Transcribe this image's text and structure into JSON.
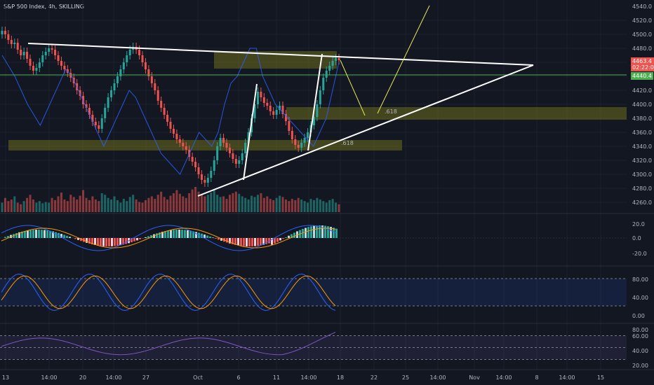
{
  "symbol": {
    "title": "S&P 500 Index, 4h, SKILLING",
    "current_price": "4463.4",
    "countdown": "02:22:01",
    "level_price": "4440.4",
    "top_label": "4540.0"
  },
  "colors": {
    "bg": "#131722",
    "bull": "#26a69a",
    "bear": "#ef5350",
    "white": "#ffffff",
    "zone": "#6b6b1e",
    "green_line": "#4caf50",
    "rsi_band": "#7e57c2",
    "stoch_band": "#2962ff"
  },
  "labels": {
    "fib1": ".618",
    "fib2": ".618"
  },
  "chart_data": [
    {
      "type": "candlestick",
      "y_ticks": [
        "4520.0",
        "4500.0",
        "4480.0",
        "4460.0",
        "4440.0",
        "4420.0",
        "4400.0",
        "4380.0",
        "4360.0",
        "4340.0",
        "4320.0",
        "4300.0",
        "4280.0",
        "4260.0"
      ],
      "x_ticks": [
        "13",
        "14:00",
        "20",
        "14:00",
        "27",
        "Oct",
        "6",
        "11",
        "14:00",
        "18",
        "22",
        "25",
        "14:00",
        "Nov",
        "14:00",
        "8",
        "14:00",
        "15"
      ],
      "ylim": [
        4250,
        4545
      ],
      "close": [
        4505,
        4500,
        4492,
        4486,
        4488,
        4478,
        4470,
        4475,
        4465,
        4455,
        4448,
        4452,
        4460,
        4470,
        4475,
        4480,
        4478,
        4470,
        4462,
        4455,
        4450,
        4445,
        4438,
        4430,
        4420,
        4412,
        4400,
        4395,
        4385,
        4375,
        4370,
        4365,
        4380,
        4395,
        4410,
        4420,
        4430,
        4440,
        4450,
        4460,
        4470,
        4478,
        4482,
        4478,
        4470,
        4460,
        4450,
        4440,
        4430,
        4420,
        4405,
        4395,
        4385,
        4375,
        4365,
        4358,
        4350,
        4345,
        4340,
        4335,
        4325,
        4318,
        4310,
        4300,
        4292,
        4288,
        4295,
        4305,
        4320,
        4340,
        4352,
        4345,
        4338,
        4330,
        4322,
        4315,
        4320,
        4330,
        4345,
        4360,
        4380,
        4400,
        4418,
        4410,
        4402,
        4398,
        4390,
        4385,
        4392,
        4398,
        4386,
        4376,
        4362,
        4350,
        4342,
        4338,
        4345,
        4352,
        4360,
        4370,
        4382,
        4400,
        4420,
        4438,
        4448,
        4455,
        4462,
        4466,
        4463
      ],
      "volumes": [
        0.3,
        0.45,
        0.35,
        0.4,
        0.5,
        0.3,
        0.25,
        0.35,
        0.45,
        0.55,
        0.4,
        0.3,
        0.35,
        0.28,
        0.32,
        0.3,
        0.45,
        0.38,
        0.5,
        0.62,
        0.4,
        0.35,
        0.55,
        0.48,
        0.4,
        0.52,
        0.7,
        0.45,
        0.38,
        0.5,
        0.4,
        0.35,
        0.6,
        0.55,
        0.45,
        0.4,
        0.5,
        0.38,
        0.3,
        0.42,
        0.35,
        0.48,
        0.55,
        0.4,
        0.32,
        0.3,
        0.38,
        0.45,
        0.5,
        0.42,
        0.55,
        0.65,
        0.48,
        0.4,
        0.52,
        0.6,
        0.7,
        0.58,
        0.5,
        0.45,
        0.6,
        0.72,
        0.8,
        0.65,
        0.58,
        0.5,
        0.55,
        0.62,
        0.7,
        0.55,
        0.48,
        0.5,
        0.42,
        0.55,
        0.6,
        0.65,
        0.58,
        0.5,
        0.45,
        0.4,
        0.52,
        0.48,
        0.55,
        0.6,
        0.45,
        0.5,
        0.42,
        0.38,
        0.45,
        0.52,
        0.48,
        0.4,
        0.35,
        0.42,
        0.38,
        0.45,
        0.4,
        0.35,
        0.3,
        0.42,
        0.38,
        0.45,
        0.4,
        0.35,
        0.3,
        0.38,
        0.42,
        0.3,
        0.25
      ]
    },
    {
      "type": "line",
      "name": "MACD",
      "y_ticks": [
        "20.0",
        "0.0",
        "-20.0"
      ],
      "ylim": [
        -35,
        30
      ]
    },
    {
      "type": "line",
      "name": "Stochastic",
      "y_ticks": [
        "80.00",
        "40.00",
        "0.00"
      ],
      "ylim": [
        -5,
        105
      ]
    },
    {
      "type": "line",
      "name": "RSI",
      "y_ticks": [
        "80.00",
        "60.00",
        "40.00",
        "20.00"
      ],
      "ylim": [
        15,
        85
      ]
    }
  ]
}
